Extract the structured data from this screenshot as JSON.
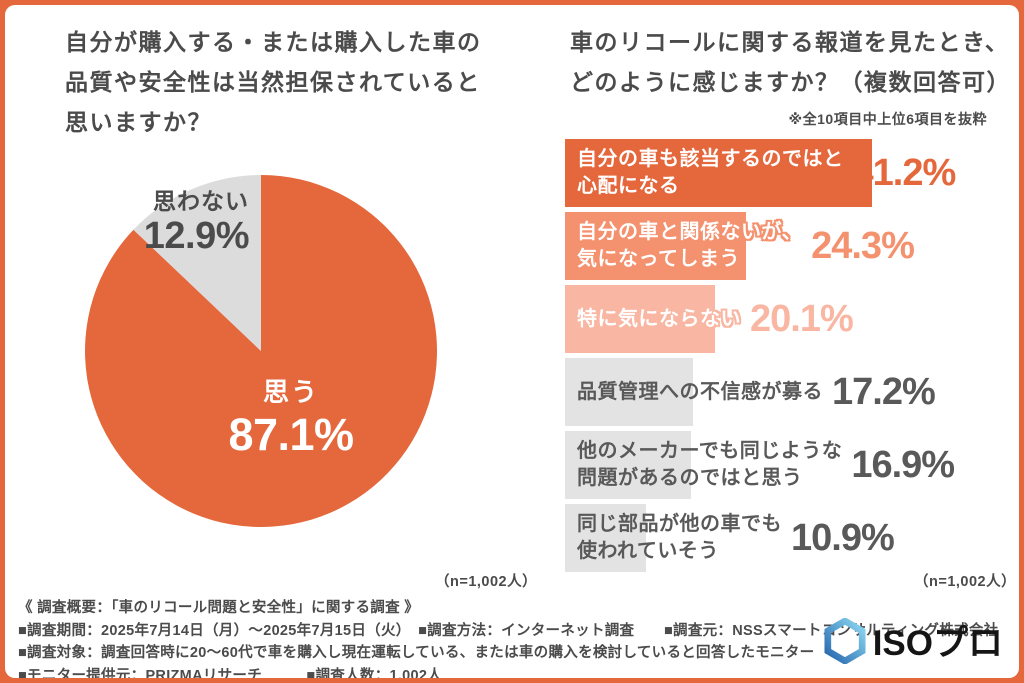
{
  "colors": {
    "frame_orange": "#E5673C",
    "salmon": "#F4916E",
    "light_salmon": "#F9B7A3",
    "bar_gray": "#E3E3E3",
    "pie_gray": "#DCDCDC",
    "text_dark": "#4B4B4B"
  },
  "pie_panel": {
    "title": "自分が購入する・または購入した車の\n品質や安全性は当然担保されていると\n思いますか？",
    "yes_label": "思う",
    "yes_value": "87.1%",
    "no_label": "思わない",
    "no_value": "12.9%",
    "n_label": "（n=1,002人）"
  },
  "bar_panel": {
    "title": "車のリコールに関する報道を見たとき、\nどのように感じますか？（複数回答可）",
    "note": "※全10項目中上位6項目を抜粋",
    "n_label": "（n=1,002人）",
    "items": [
      {
        "label": "自分の車も該当するのではと\n心配になる",
        "value": 41.2,
        "value_label": "41.2%"
      },
      {
        "label": "自分の車と関係ないが、\n気になってしまう",
        "value": 24.3,
        "value_label": "24.3%"
      },
      {
        "label": "特に気にならない",
        "value": 20.1,
        "value_label": "20.1%"
      },
      {
        "label": "品質管理への不信感が募る",
        "value": 17.2,
        "value_label": "17.2%"
      },
      {
        "label": "他のメーカーでも同じような\n問題があるのではと思う",
        "value": 16.9,
        "value_label": "16.9%"
      },
      {
        "label": "同じ部品が他の車でも\n使われていそう",
        "value": 10.9,
        "value_label": "10.9%"
      }
    ]
  },
  "footer": {
    "lines": [
      "《 調査概要：「車のリコール問題と安全性」に関する調査 》",
      "■調査期間：2025年7月14日（月）〜2025年7月15日（火）　■調査方法：インターネット調査　　■調査元：NSSスマートコンサルティング株式会社",
      "■調査対象：調査回答時に20〜60代で車を購入し現在運転している、または車の購入を検討していると回答したモニター",
      "■モニター提供元：PRIZMAリサーチ　　　■調査人数：1,002人"
    ]
  },
  "logo": {
    "text": "ISOプロ",
    "icon": "hexagon-icon"
  },
  "chart_data": [
    {
      "type": "pie",
      "title": "自分が購入する・または購入した車の品質や安全性は当然担保されていると思いますか？",
      "labels": [
        "思う",
        "思わない"
      ],
      "values": [
        87.1,
        12.9
      ],
      "colors": [
        "#E5673C",
        "#DCDCDC"
      ],
      "start_angle_deg": 0,
      "direction": "clockwise",
      "sample_size": "n=1,002人"
    },
    {
      "type": "bar",
      "orientation": "horizontal",
      "title": "車のリコールに関する報道を見たとき、どのように感じますか？（複数回答可）",
      "note": "※全10項目中上位6項目を抜粋",
      "categories": [
        "自分の車も該当するのではと心配になる",
        "自分の車と関係ないが、気になってしまう",
        "特に気にならない",
        "品質管理への不信感が募る",
        "他のメーカーでも同じような問題があるのではと思う",
        "同じ部品が他の車でも使われていそう"
      ],
      "values": [
        41.2,
        24.3,
        20.1,
        17.2,
        16.9,
        10.9
      ],
      "unit": "%",
      "bar_colors": [
        "#E5673C",
        "#F4916E",
        "#F9B7A3",
        "#E3E3E3",
        "#E3E3E3",
        "#E3E3E3"
      ],
      "xlim": [
        0,
        60
      ],
      "sample_size": "n=1,002人"
    }
  ]
}
